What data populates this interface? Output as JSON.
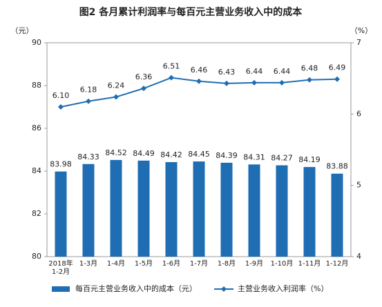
{
  "chart_data": {
    "type": "bar-line",
    "title": "图2 各月累计利润率与每百元主营业务收入中的成本",
    "y_label": "（元）",
    "y2_label": "（%）",
    "categories": [
      "2018年\n1-2月",
      "1-3月",
      "1-4月",
      "1-5月",
      "1-6月",
      "1-7月",
      "1-8月",
      "1-9月",
      "1-10月",
      "1-11月",
      "1-12月"
    ],
    "series": [
      {
        "name": "每百元主营业务收入中的成本（元）",
        "type": "bar",
        "color": "#1f6db3",
        "values": [
          83.98,
          84.33,
          84.52,
          84.49,
          84.42,
          84.45,
          84.39,
          84.31,
          84.27,
          84.19,
          83.88
        ]
      },
      {
        "name": "主营业务收入利润率（%）",
        "type": "line",
        "axis": "y2",
        "color": "#1f6db3",
        "values": [
          6.1,
          6.18,
          6.24,
          6.36,
          6.51,
          6.46,
          6.43,
          6.44,
          6.44,
          6.48,
          6.49
        ],
        "value_labels": [
          "6.10",
          "6.18",
          "6.24",
          "6.36",
          "6.51",
          "6.46",
          "6.43",
          "6.44",
          "6.44",
          "6.48",
          "6.49"
        ]
      }
    ],
    "ylim": [
      80,
      90
    ],
    "yticks": [
      80,
      82,
      84,
      86,
      88,
      90
    ],
    "y2lim": [
      4,
      7
    ],
    "y2ticks": [
      4,
      5,
      6,
      7
    ],
    "grid": false,
    "legend": "bottom"
  }
}
